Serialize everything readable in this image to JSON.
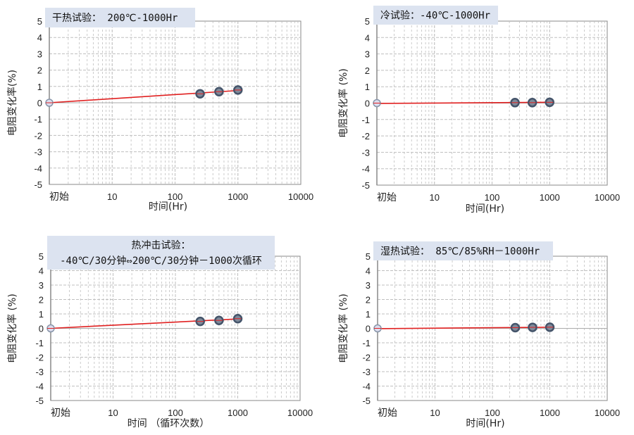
{
  "colors": {
    "title_bg": "#dce3f0",
    "fit_line": "#e02020",
    "marker": "#44546a",
    "grid": "#bfbfbf",
    "axis": "#888888"
  },
  "chart_data": [
    {
      "type": "scatter",
      "title_lines": [
        "干热试验：  200℃-1000Hr"
      ],
      "xlabel": "时间(Hr)",
      "ylabel": "电阻变化率(%)",
      "xscale": "log",
      "xticks": [
        "初始",
        "10",
        "100",
        "1000",
        "10000"
      ],
      "xlim": [
        1,
        10000
      ],
      "ylim": [
        -5,
        5
      ],
      "yticks": [
        "5",
        "4",
        "3",
        "2",
        "1",
        "0",
        "-1",
        "-2",
        "-3",
        "-4",
        "-5"
      ],
      "grid": true,
      "x": [
        1,
        250,
        500,
        1000
      ],
      "y": [
        0,
        0.55,
        0.68,
        0.78
      ],
      "trendline": {
        "x": [
          1,
          1100
        ],
        "y": [
          0,
          0.76
        ]
      }
    },
    {
      "type": "scatter",
      "title_lines": [
        "冷试验：-40℃-1000Hr"
      ],
      "xlabel": "时间(Hr)",
      "ylabel": "电阻变化率 (%)",
      "xscale": "log",
      "xticks": [
        "初始",
        "10",
        "100",
        "1000",
        "10000"
      ],
      "xlim": [
        1,
        10000
      ],
      "ylim": [
        -5,
        5
      ],
      "yticks": [
        "5",
        "4",
        "3",
        "2",
        "1",
        "0",
        "-1",
        "-2",
        "-3",
        "-4",
        "-5"
      ],
      "grid": true,
      "x": [
        1,
        250,
        500,
        1000
      ],
      "y": [
        0,
        0.03,
        0.03,
        0.05
      ],
      "trendline": {
        "x": [
          1,
          1100
        ],
        "y": [
          -0.02,
          0.05
        ]
      }
    },
    {
      "type": "scatter",
      "title_lines": [
        "热冲击试验：",
        "-40℃/30分钟⇔200℃/30分钟－1000次循环"
      ],
      "xlabel": "时间 （循环次数）",
      "ylabel": "电阻变化率 (%)",
      "xscale": "log",
      "xticks": [
        "初始",
        "10",
        "100",
        "1000",
        "10000"
      ],
      "xlim": [
        1,
        10000
      ],
      "ylim": [
        -5,
        5
      ],
      "yticks": [
        "5",
        "4",
        "3",
        "2",
        "1",
        "0",
        "-1",
        "-2",
        "-3",
        "-4",
        "-5"
      ],
      "grid": true,
      "x": [
        1,
        250,
        500,
        1000
      ],
      "y": [
        0,
        0.48,
        0.55,
        0.67
      ],
      "trendline": {
        "x": [
          1,
          1100
        ],
        "y": [
          0,
          0.66
        ]
      }
    },
    {
      "type": "scatter",
      "title_lines": [
        "湿热试验： 85℃/85%RH－1000Hr"
      ],
      "xlabel": "时间(Hr)",
      "ylabel": "电阻变化率 (%)",
      "xscale": "log",
      "xticks": [
        "初始",
        "10",
        "100",
        "1000",
        "10000"
      ],
      "xlim": [
        1,
        10000
      ],
      "ylim": [
        -5,
        5
      ],
      "yticks": [
        "5",
        "4",
        "3",
        "2",
        "1",
        "0",
        "-1",
        "-2",
        "-3",
        "-4",
        "-5"
      ],
      "grid": true,
      "x": [
        1,
        250,
        500,
        1000
      ],
      "y": [
        0,
        0.05,
        0.07,
        0.08
      ],
      "trendline": {
        "x": [
          1,
          1100
        ],
        "y": [
          -0.02,
          0.08
        ]
      }
    }
  ]
}
